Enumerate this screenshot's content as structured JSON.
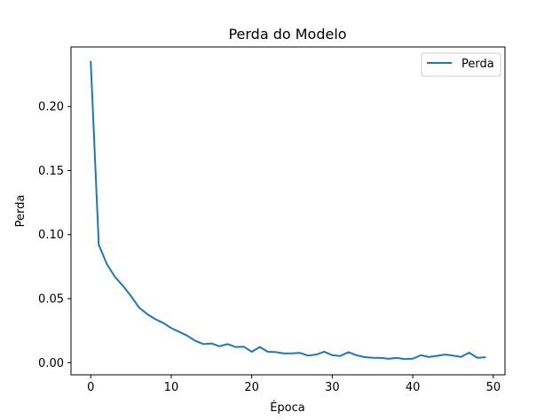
{
  "chart_data": {
    "type": "line",
    "title": "Perda do Modelo",
    "xlabel": "Época",
    "ylabel": "Perda",
    "xlim": [
      -2.45,
      51.45
    ],
    "ylim": [
      -0.0095,
      0.2465
    ],
    "xticks": [
      0,
      10,
      20,
      30,
      40,
      50
    ],
    "xtick_labels": [
      "0",
      "10",
      "20",
      "30",
      "40",
      "50"
    ],
    "yticks": [
      0.0,
      0.05,
      0.1,
      0.15,
      0.2
    ],
    "ytick_labels": [
      "0.00",
      "0.05",
      "0.10",
      "0.15",
      "0.20"
    ],
    "grid": false,
    "legend": {
      "location": "top-right",
      "entries": [
        "Perda"
      ]
    },
    "series": [
      {
        "name": "Perda",
        "color": "#1f77b4",
        "x": [
          0,
          1,
          2,
          3,
          4,
          5,
          6,
          7,
          8,
          9,
          10,
          11,
          12,
          13,
          14,
          15,
          16,
          17,
          18,
          19,
          20,
          21,
          22,
          23,
          24,
          25,
          26,
          27,
          28,
          29,
          30,
          31,
          32,
          33,
          34,
          35,
          36,
          37,
          38,
          39,
          40,
          41,
          42,
          43,
          44,
          45,
          46,
          47,
          48,
          49
        ],
        "y": [
          0.235,
          0.092,
          0.077,
          0.067,
          0.06,
          0.052,
          0.043,
          0.038,
          0.034,
          0.031,
          0.027,
          0.024,
          0.021,
          0.017,
          0.0145,
          0.015,
          0.0128,
          0.0145,
          0.0122,
          0.0125,
          0.0085,
          0.0122,
          0.0085,
          0.0082,
          0.0072,
          0.0073,
          0.0076,
          0.0055,
          0.0063,
          0.0085,
          0.0058,
          0.0052,
          0.0082,
          0.0058,
          0.0043,
          0.0038,
          0.0037,
          0.003,
          0.0037,
          0.0028,
          0.0031,
          0.0058,
          0.0044,
          0.0053,
          0.0063,
          0.0055,
          0.0045,
          0.0078,
          0.0038,
          0.0042
        ]
      }
    ]
  }
}
